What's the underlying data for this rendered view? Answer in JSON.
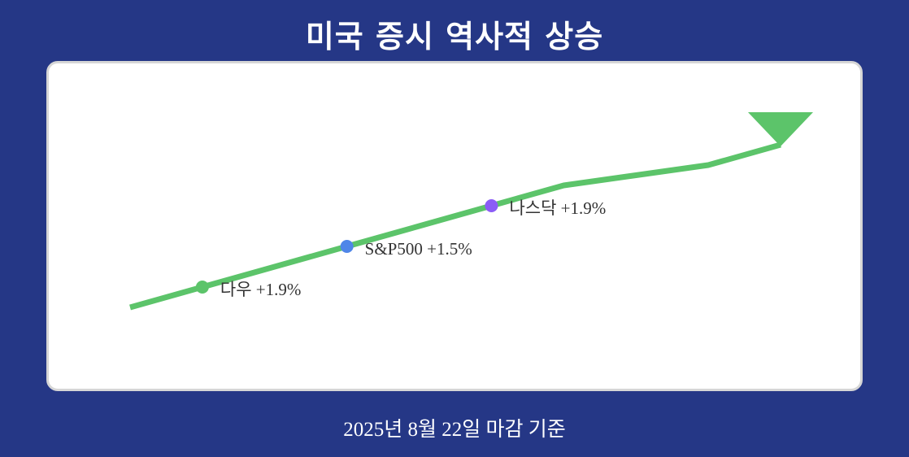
{
  "header": {
    "title": "미국 증시 역사적 상승"
  },
  "footer": {
    "date_note": "2025년 8월 22일 마감 기준"
  },
  "colors": {
    "background": "#253786",
    "panel": "#ffffff",
    "trend_line": "#5cc46a",
    "dow": "#5cc46a",
    "sp500": "#4f86e8",
    "nasdaq": "#8b5cf6"
  },
  "chart_data": {
    "type": "line",
    "title": "미국 증시 역사적 상승",
    "trend": {
      "x": [
        0,
        1,
        2,
        3,
        4,
        5,
        6,
        7,
        8,
        9
      ],
      "y": [
        0,
        1,
        2,
        3,
        4,
        5,
        6,
        6.5,
        7,
        8
      ]
    },
    "points": [
      {
        "index": 1,
        "label": "다우 +1.9%",
        "color": "#5cc46a"
      },
      {
        "index": 3,
        "label": "S&P500 +1.5%",
        "color": "#4f86e8"
      },
      {
        "index": 5,
        "label": "나스닥 +1.9%",
        "color": "#8b5cf6"
      }
    ],
    "arrow": "up-right",
    "grid": false
  }
}
